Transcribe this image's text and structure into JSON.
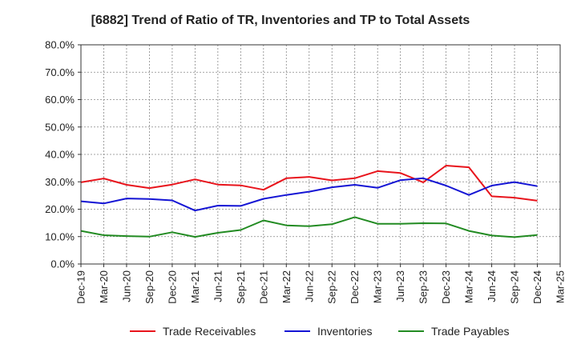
{
  "chart_data": {
    "type": "line",
    "title": "[6882]  Trend of Ratio of TR, Inventories and TP to Total Assets",
    "xlabel": "",
    "ylabel": "",
    "ylim": [
      0,
      80
    ],
    "yticks": [
      "0.0%",
      "10.0%",
      "20.0%",
      "30.0%",
      "40.0%",
      "50.0%",
      "60.0%",
      "70.0%",
      "80.0%"
    ],
    "x_tick_labels": [
      "Dec-19",
      "Mar-20",
      "Jun-20",
      "Sep-20",
      "Dec-20",
      "Mar-21",
      "Jun-21",
      "Sep-21",
      "Dec-21",
      "Mar-22",
      "Jun-22",
      "Sep-22",
      "Dec-22",
      "Mar-23",
      "Jun-23",
      "Sep-23",
      "Dec-23",
      "Mar-24",
      "Jun-24",
      "Sep-24",
      "Dec-24",
      "Mar-25"
    ],
    "grid": true,
    "legend_position": "bottom",
    "categories": [
      "Dec-19",
      "Mar-20",
      "Jun-20",
      "Sep-20",
      "Dec-20",
      "Mar-21",
      "Jun-21",
      "Sep-21",
      "Dec-21",
      "Mar-22",
      "Jun-22",
      "Sep-22",
      "Dec-22",
      "Mar-23",
      "Jun-23",
      "Sep-23",
      "Dec-23",
      "Mar-24",
      "Jun-24",
      "Sep-24",
      "Dec-24"
    ],
    "series": [
      {
        "name": "Trade Receivables",
        "color": "#e8141c",
        "values": [
          29.8,
          31.2,
          28.9,
          27.7,
          29.0,
          30.9,
          29.0,
          28.7,
          27.1,
          31.3,
          31.8,
          30.5,
          31.3,
          33.9,
          33.2,
          29.8,
          35.9,
          35.3,
          24.7,
          24.2,
          23.1
        ]
      },
      {
        "name": "Inventories",
        "color": "#1414d4",
        "values": [
          22.9,
          22.1,
          23.9,
          23.7,
          23.2,
          19.5,
          21.3,
          21.2,
          23.8,
          25.2,
          26.4,
          28.0,
          28.9,
          27.8,
          30.6,
          31.3,
          28.6,
          25.2,
          28.6,
          29.9,
          28.4
        ]
      },
      {
        "name": "Trade Payables",
        "color": "#228b22",
        "values": [
          12.1,
          10.5,
          10.2,
          10.0,
          11.6,
          9.9,
          11.4,
          12.4,
          15.9,
          14.1,
          13.8,
          14.5,
          17.1,
          14.7,
          14.7,
          14.9,
          14.8,
          12.1,
          10.4,
          9.8,
          10.6
        ]
      }
    ]
  }
}
